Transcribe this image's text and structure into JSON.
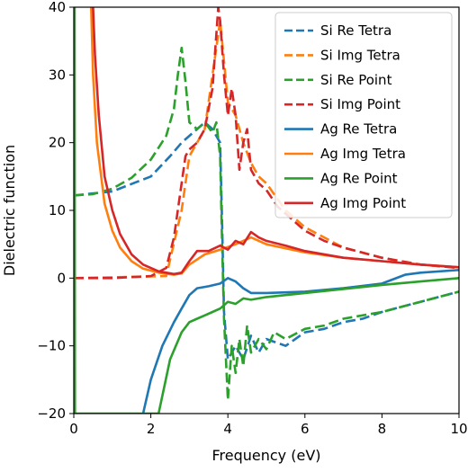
{
  "chart_data": {
    "type": "line",
    "title": "",
    "xlabel": "Frequency (eV)",
    "ylabel": "Dielectric function",
    "xlim": [
      0,
      10
    ],
    "ylim": [
      -20,
      40
    ],
    "x_ticks": [
      0,
      2,
      4,
      6,
      8,
      10
    ],
    "y_ticks": [
      -20,
      -10,
      0,
      10,
      20,
      30,
      40
    ],
    "grid": false,
    "legend_position": "top-right",
    "series": [
      {
        "name": "Si Re Tetra",
        "color": "#1f77b4",
        "dash": "dashed",
        "x": [
          0,
          1,
          2,
          2.5,
          2.8,
          3.0,
          3.2,
          3.4,
          3.6,
          3.8,
          3.85,
          3.9,
          4.0,
          4.2,
          4.4,
          4.6,
          4.8,
          5.0,
          5.5,
          6.0,
          6.5,
          7.0,
          7.5,
          8.0,
          9.0,
          10.0
        ],
        "y": [
          12.2,
          12.8,
          15.0,
          18.0,
          20.0,
          21.0,
          22.0,
          23.0,
          22.0,
          20.0,
          8.0,
          -5.0,
          -12.0,
          -10.0,
          -12.0,
          -8.5,
          -11.0,
          -9.0,
          -10.0,
          -8.0,
          -7.5,
          -6.5,
          -6.0,
          -5.0,
          -3.5,
          -2.0
        ]
      },
      {
        "name": "Si Img Tetra",
        "color": "#ff7f0e",
        "dash": "dashed",
        "x": [
          0,
          2.4,
          2.8,
          3.0,
          3.2,
          3.4,
          3.6,
          3.8,
          4.0,
          4.2,
          4.4,
          4.6,
          4.8,
          5.0,
          5.5,
          6.0,
          7.0,
          8.0,
          9.0,
          10.0
        ],
        "y": [
          0,
          0.3,
          10.0,
          18.0,
          20.0,
          22.0,
          30.0,
          38.0,
          26.0,
          24.0,
          20.0,
          17.0,
          15.0,
          14.0,
          10.0,
          7.5,
          4.5,
          3.0,
          2.0,
          1.5
        ]
      },
      {
        "name": "Si Re Point",
        "color": "#2ca02c",
        "dash": "dashed",
        "x": [
          0,
          0.5,
          1.0,
          1.5,
          2.0,
          2.4,
          2.6,
          2.7,
          2.8,
          2.9,
          3.0,
          3.2,
          3.4,
          3.6,
          3.7,
          3.8,
          3.85,
          3.9,
          4.0,
          4.1,
          4.2,
          4.3,
          4.4,
          4.5,
          4.6,
          4.8,
          5.0,
          5.2,
          5.5,
          6.0,
          6.5,
          7.0,
          8.0,
          9.0,
          10.0
        ],
        "y": [
          12.2,
          12.4,
          13.2,
          14.8,
          17.5,
          21.0,
          25.0,
          30.0,
          34.0,
          29.0,
          23.0,
          22.0,
          23.0,
          21.5,
          23.0,
          18.0,
          5.0,
          -6.0,
          -18.0,
          -10.0,
          -14.0,
          -9.0,
          -13.0,
          -7.0,
          -11.0,
          -9.0,
          -10.5,
          -8.0,
          -9.0,
          -7.5,
          -7.0,
          -6.0,
          -5.0,
          -3.5,
          -2.0
        ]
      },
      {
        "name": "Si Img Point",
        "color": "#d62728",
        "dash": "dashed",
        "x": [
          0,
          1.0,
          2.0,
          2.4,
          2.6,
          2.8,
          2.9,
          3.0,
          3.2,
          3.4,
          3.6,
          3.7,
          3.75,
          3.8,
          3.9,
          4.0,
          4.1,
          4.2,
          4.3,
          4.4,
          4.5,
          4.6,
          4.8,
          5.0,
          5.3,
          5.6,
          6.0,
          6.5,
          7.0,
          8.0,
          9.0,
          10.0
        ],
        "y": [
          0,
          0,
          0.3,
          1.5,
          6.0,
          14.0,
          18.0,
          19.0,
          20.0,
          22.0,
          28.0,
          36.0,
          40.0,
          38.0,
          30.0,
          24.0,
          28.0,
          24.0,
          16.0,
          20.0,
          22.0,
          16.0,
          14.0,
          13.0,
          10.5,
          9.0,
          7.0,
          5.5,
          4.5,
          3.0,
          2.0,
          1.5
        ]
      },
      {
        "name": "Ag Re Tetra",
        "color": "#1f77b4",
        "dash": "solid",
        "x": [
          1.8,
          2.0,
          2.3,
          2.6,
          2.8,
          3.0,
          3.2,
          3.5,
          3.8,
          4.0,
          4.2,
          4.4,
          4.6,
          5.0,
          6.0,
          7.0,
          8.0,
          8.6,
          9.0,
          10.0
        ],
        "y": [
          -20.0,
          -15.0,
          -10.0,
          -6.5,
          -4.5,
          -2.5,
          -1.5,
          -1.2,
          -0.8,
          0.0,
          -0.5,
          -1.5,
          -2.2,
          -2.2,
          -2.0,
          -1.5,
          -0.8,
          0.5,
          0.8,
          1.2
        ]
      },
      {
        "name": "Ag Img Tetra",
        "color": "#ff7f0e",
        "dash": "solid",
        "x": [
          0.45,
          0.5,
          0.6,
          0.8,
          1.0,
          1.2,
          1.5,
          1.8,
          2.2,
          2.6,
          2.8,
          3.0,
          3.4,
          3.8,
          4.2,
          4.6,
          5.0,
          6.0,
          7.0,
          8.0,
          9.0,
          10.0
        ],
        "y": [
          40.0,
          30.0,
          20.0,
          11.0,
          7.0,
          4.5,
          2.5,
          1.4,
          0.8,
          0.5,
          0.7,
          2.0,
          3.5,
          4.2,
          5.0,
          6.0,
          5.0,
          3.8,
          3.0,
          2.5,
          2.0,
          1.6
        ]
      },
      {
        "name": "Ag Re Point",
        "color": "#2ca02c",
        "dash": "solid",
        "x": [
          0.02,
          0.03,
          0.05,
          2.2,
          2.5,
          2.8,
          3.0,
          3.2,
          3.4,
          3.6,
          3.8,
          3.9,
          4.0,
          4.2,
          4.4,
          4.6,
          5.0,
          6.0,
          7.0,
          8.0,
          9.0,
          10.0
        ],
        "y": [
          40.0,
          -20.0,
          -20.0,
          -20.0,
          -12.0,
          -8.0,
          -6.5,
          -6.0,
          -5.5,
          -5.0,
          -4.5,
          -4.0,
          -3.5,
          -3.8,
          -3.0,
          -3.2,
          -2.8,
          -2.2,
          -1.6,
          -1.0,
          -0.5,
          0.0
        ]
      },
      {
        "name": "Ag Img Point",
        "color": "#d62728",
        "dash": "solid",
        "x": [
          0.5,
          0.55,
          0.65,
          0.8,
          1.0,
          1.2,
          1.5,
          1.8,
          2.2,
          2.6,
          2.8,
          3.0,
          3.2,
          3.5,
          3.8,
          4.0,
          4.2,
          4.4,
          4.6,
          4.8,
          5.0,
          5.5,
          6.0,
          7.0,
          8.0,
          9.0,
          10.0
        ],
        "y": [
          40.0,
          33.0,
          24.0,
          15.0,
          10.0,
          6.5,
          3.5,
          2.0,
          1.0,
          0.6,
          0.8,
          2.5,
          4.0,
          4.0,
          4.8,
          4.2,
          5.5,
          5.0,
          6.8,
          6.0,
          5.5,
          4.8,
          4.0,
          3.0,
          2.5,
          2.0,
          1.6
        ]
      }
    ]
  }
}
